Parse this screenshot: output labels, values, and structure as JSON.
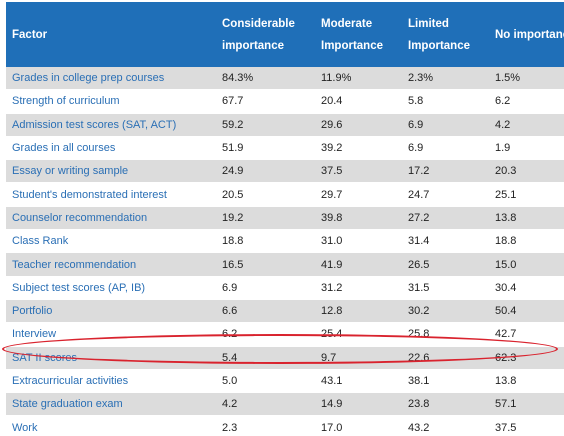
{
  "header": {
    "factor": "Factor",
    "considerable": "Considerable importance",
    "moderate": "Moderate Importance",
    "limited": "Limited Importance",
    "no": "No importance"
  },
  "rows": [
    {
      "factor": "Grades in college prep courses",
      "considerable": "84.3%",
      "moderate": "11.9%",
      "limited": "2.3%",
      "no": "1.5%"
    },
    {
      "factor": "Strength of curriculum",
      "considerable": "67.7",
      "moderate": "20.4",
      "limited": "5.8",
      "no": "6.2"
    },
    {
      "factor": "Admission test scores (SAT, ACT)",
      "considerable": "59.2",
      "moderate": "29.6",
      "limited": "6.9",
      "no": "4.2"
    },
    {
      "factor": "Grades in all courses",
      "considerable": "51.9",
      "moderate": "39.2",
      "limited": "6.9",
      "no": "1.9"
    },
    {
      "factor": "Essay or writing sample",
      "considerable": "24.9",
      "moderate": "37.5",
      "limited": "17.2",
      "no": "20.3"
    },
    {
      "factor": "Student's demonstrated interest",
      "considerable": "20.5",
      "moderate": "29.7",
      "limited": "24.7",
      "no": "25.1"
    },
    {
      "factor": "Counselor recommendation",
      "considerable": "19.2",
      "moderate": "39.8",
      "limited": "27.2",
      "no": "13.8"
    },
    {
      "factor": "Class Rank",
      "considerable": "18.8",
      "moderate": "31.0",
      "limited": "31.4",
      "no": "18.8"
    },
    {
      "factor": "Teacher recommendation",
      "considerable": "16.5",
      "moderate": "41.9",
      "limited": "26.5",
      "no": "15.0"
    },
    {
      "factor": "Subject test scores (AP, IB)",
      "considerable": "6.9",
      "moderate": "31.2",
      "limited": "31.5",
      "no": "30.4"
    },
    {
      "factor": "Portfolio",
      "considerable": "6.6",
      "moderate": "12.8",
      "limited": "30.2",
      "no": "50.4"
    },
    {
      "factor": "Interview",
      "considerable": "6.2",
      "moderate": "25.4",
      "limited": "25.8",
      "no": "42.7"
    },
    {
      "factor": "SAT II scores",
      "considerable": "5.4",
      "moderate": "9.7",
      "limited": "22.6",
      "no": "62.3"
    },
    {
      "factor": "Extracurricular activities",
      "considerable": "5.0",
      "moderate": "43.1",
      "limited": "38.1",
      "no": "13.8"
    },
    {
      "factor": "State graduation exam",
      "considerable": "4.2",
      "moderate": "14.9",
      "limited": "23.8",
      "no": "57.1"
    },
    {
      "factor": "Work",
      "considerable": "2.3",
      "moderate": "17.0",
      "limited": "43.2",
      "no": "37.5"
    }
  ],
  "colors": {
    "header_bg": "#1f6fb8",
    "stripe": "#dcdcdc",
    "factor_text": "#2a6fb5",
    "highlight": "#d9232e"
  }
}
